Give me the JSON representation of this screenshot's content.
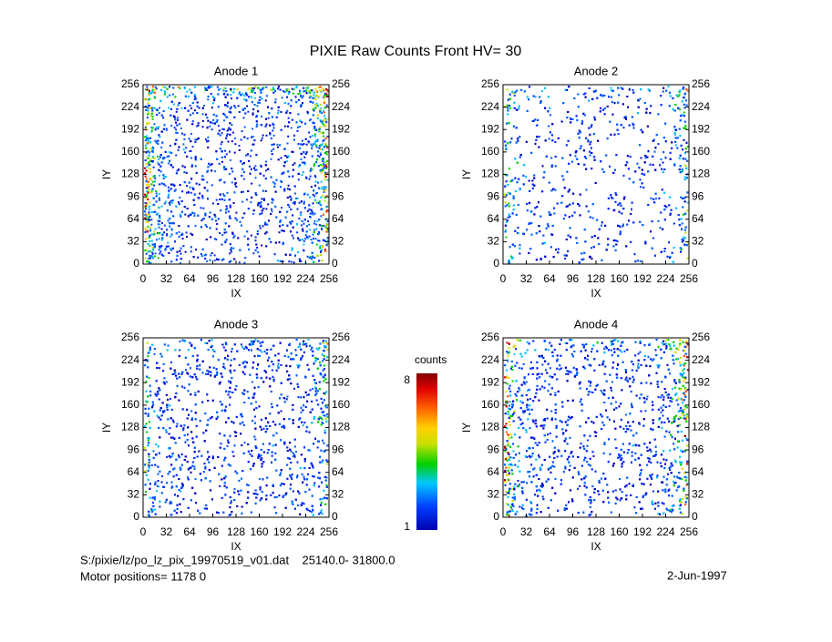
{
  "title": "PIXIE Raw Counts Front HV= 30",
  "chart_data": [
    {
      "type": "heatmap",
      "title": "Anode 1",
      "xlabel": "IX",
      "ylabel": "IY",
      "xlim": [
        0,
        256
      ],
      "ylim": [
        0,
        256
      ],
      "xticks": [
        0,
        32,
        64,
        96,
        128,
        160,
        192,
        224,
        256
      ],
      "yticks": [
        0,
        32,
        64,
        96,
        128,
        160,
        192,
        224,
        256
      ]
    },
    {
      "type": "heatmap",
      "title": "Anode 2",
      "xlabel": "IX",
      "ylabel": "IY",
      "xlim": [
        0,
        256
      ],
      "ylim": [
        0,
        256
      ],
      "xticks": [
        0,
        32,
        64,
        96,
        128,
        160,
        192,
        224,
        256
      ],
      "yticks": [
        0,
        32,
        64,
        96,
        128,
        160,
        192,
        224,
        256
      ]
    },
    {
      "type": "heatmap",
      "title": "Anode 3",
      "xlabel": "IX",
      "ylabel": "IY",
      "xlim": [
        0,
        256
      ],
      "ylim": [
        0,
        256
      ],
      "xticks": [
        0,
        32,
        64,
        96,
        128,
        160,
        192,
        224,
        256
      ],
      "yticks": [
        0,
        32,
        64,
        96,
        128,
        160,
        192,
        224,
        256
      ]
    },
    {
      "type": "heatmap",
      "title": "Anode 4",
      "xlabel": "IX",
      "ylabel": "IY",
      "xlim": [
        0,
        256
      ],
      "ylim": [
        0,
        256
      ],
      "xticks": [
        0,
        32,
        64,
        96,
        128,
        160,
        192,
        224,
        256
      ],
      "yticks": [
        0,
        32,
        64,
        96,
        128,
        160,
        192,
        224,
        256
      ]
    }
  ],
  "colorbar": {
    "label": "counts",
    "lim": [
      1,
      8
    ],
    "ticks": [
      1,
      8
    ]
  },
  "footer": {
    "file": "S:/pixie/lz/po_lz_pix_19970519_v01.dat    25140.0- 31800.0",
    "motor": "Motor positions= 1178 0",
    "date": "2-Jun-1997"
  }
}
